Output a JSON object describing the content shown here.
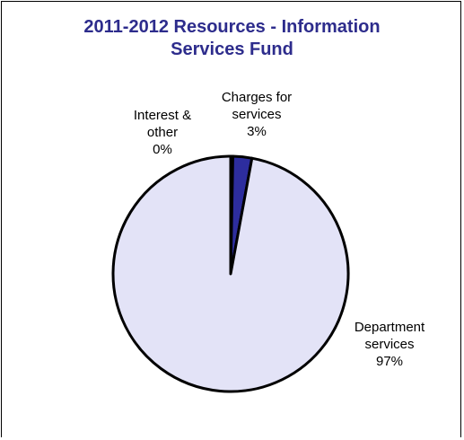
{
  "chart_data": {
    "type": "pie",
    "title": "2011-2012 Resources - Information Services Fund",
    "title_lines": [
      "2011-2012 Resources - Information",
      "Services Fund"
    ],
    "slices": [
      {
        "label": "Interest & other",
        "label_lines": [
          "Interest &",
          "other"
        ],
        "value_label": "0%",
        "value": 0.3,
        "color": "#2a2a8c"
      },
      {
        "label": "Charges for services",
        "label_lines": [
          "Charges for",
          "services"
        ],
        "value_label": "3%",
        "value": 2.6,
        "color": "#2d2d9e"
      },
      {
        "label": "Department services",
        "label_lines": [
          "Department",
          "services"
        ],
        "value_label": "97%",
        "value": 97.1,
        "color": "#e3e3f7"
      }
    ],
    "colors": {
      "title": "#2d2c8c",
      "outline": "#000000"
    }
  }
}
